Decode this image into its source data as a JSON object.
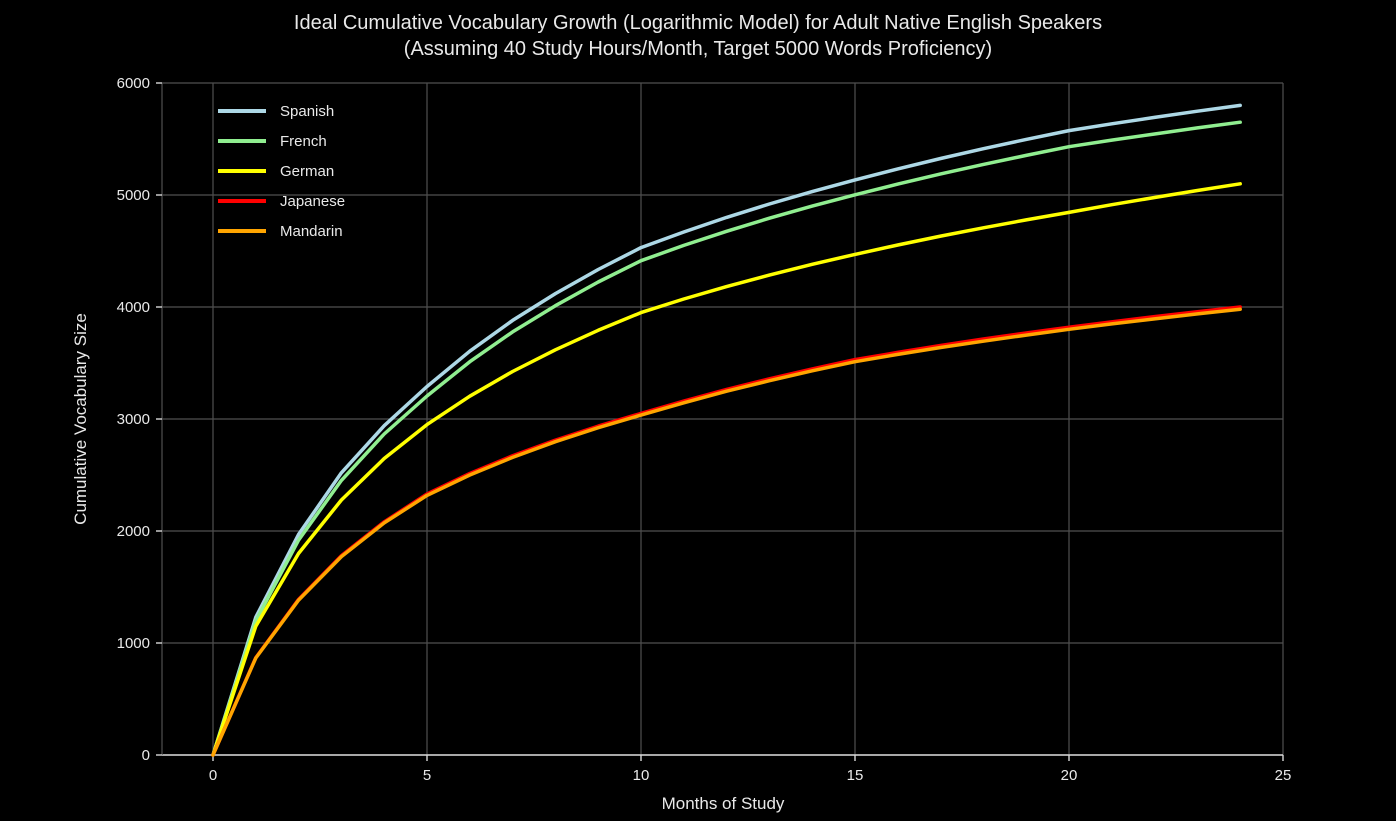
{
  "figure": {
    "background": "#000000",
    "title_line1": "Ideal Cumulative Vocabulary Growth (Logarithmic Model) for Adult Native English Speakers",
    "title_line2": "(Assuming 40 Study Hours/Month, Target 5000 Words Proficiency)",
    "xlabel": "Months of Study",
    "ylabel": "Cumulative Vocabulary Size",
    "text_color": "#e9e9e9"
  },
  "chart_data": {
    "type": "line",
    "title": "Ideal Cumulative Vocabulary Growth (Logarithmic Model) for Adult Native English Speakers (Assuming 40 Study Hours/Month, Target 5000 Words Proficiency)",
    "xlabel": "Months of Study",
    "ylabel": "Cumulative Vocabulary Size",
    "x": [
      0,
      1,
      2,
      3,
      4,
      5,
      6,
      7,
      8,
      9,
      10,
      11,
      12,
      13,
      14,
      15,
      16,
      17,
      18,
      19,
      20,
      21,
      22,
      23,
      24
    ],
    "series": [
      {
        "name": "Spanish",
        "color": "#add8e6",
        "values": [
          0,
          1230,
          1970,
          2520,
          2940,
          3290,
          3605,
          3880,
          4120,
          4335,
          4530,
          4670,
          4800,
          4920,
          5030,
          5135,
          5233,
          5326,
          5413,
          5496,
          5575,
          5636,
          5693,
          5748,
          5800
        ]
      },
      {
        "name": "French",
        "color": "#90ee90",
        "values": [
          0,
          1198,
          1919,
          2452,
          2866,
          3205,
          3512,
          3778,
          4012,
          4223,
          4413,
          4550,
          4676,
          4793,
          4901,
          5002,
          5097,
          5188,
          5273,
          5354,
          5431,
          5490,
          5545,
          5599,
          5650
        ]
      },
      {
        "name": "German",
        "color": "#ffff00",
        "values": [
          0,
          1150,
          1800,
          2277,
          2647,
          2950,
          3204,
          3424,
          3618,
          3792,
          3950,
          4071,
          4182,
          4285,
          4381,
          4470,
          4554,
          4633,
          4707,
          4778,
          4845,
          4913,
          4978,
          5040,
          5100
        ]
      },
      {
        "name": "Japanese",
        "color": "#ff0000",
        "values": [
          0,
          870,
          1390,
          1780,
          2082,
          2330,
          2513,
          2671,
          2811,
          2937,
          3050,
          3161,
          3264,
          3359,
          3447,
          3530,
          3595,
          3656,
          3714,
          3768,
          3820,
          3868,
          3914,
          3958,
          4000
        ]
      },
      {
        "name": "Mandarin",
        "color": "#ffa500",
        "values": [
          0,
          866,
          1383,
          1771,
          2072,
          2318,
          2500,
          2657,
          2797,
          2922,
          3035,
          3145,
          3248,
          3342,
          3430,
          3512,
          3577,
          3638,
          3695,
          3749,
          3801,
          3849,
          3894,
          3938,
          3980
        ]
      }
    ],
    "xticks": [
      0,
      5,
      10,
      15,
      20,
      25
    ],
    "yticks": [
      0,
      1000,
      2000,
      3000,
      4000,
      5000,
      6000
    ],
    "xlim": [
      -1.2,
      25
    ],
    "ylim": [
      0,
      6000
    ],
    "grid": true,
    "grid_color": "#4f4f4f",
    "axis_color": "#d9d9d9",
    "legend_position": "upper left",
    "line_width": 3.5
  }
}
